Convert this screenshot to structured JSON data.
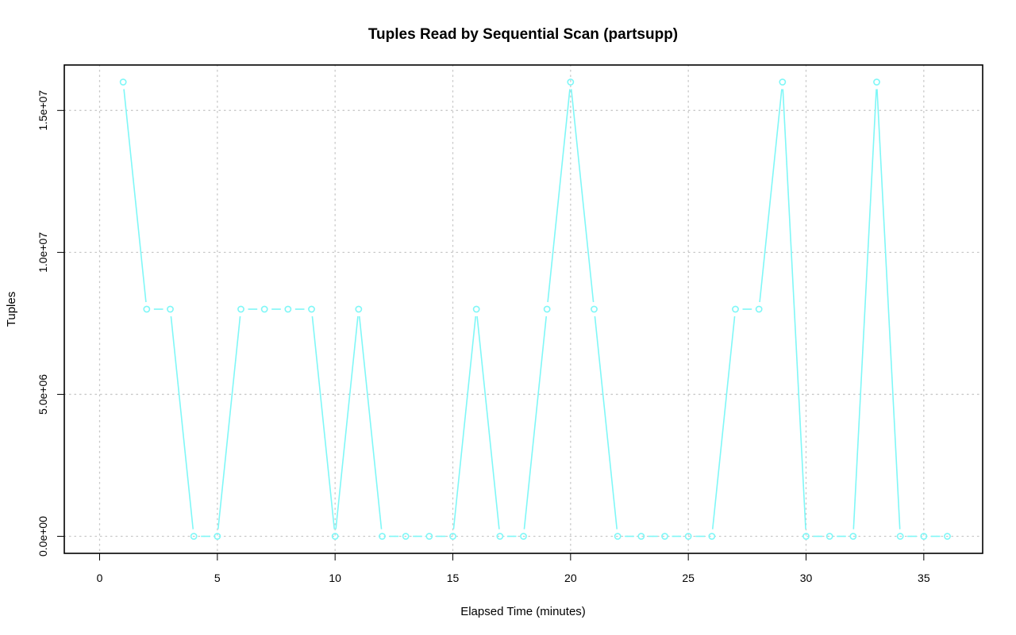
{
  "chart_data": {
    "type": "line",
    "title": "Tuples Read by Sequential Scan (partsupp)",
    "xlabel": "Elapsed Time (minutes)",
    "ylabel": "Tuples",
    "xlim": [
      -1.5,
      37.5
    ],
    "ylim": [
      -600000,
      16600000
    ],
    "xticks": [
      0,
      5,
      10,
      15,
      20,
      25,
      30,
      35
    ],
    "xtick_labels": [
      "0",
      "5",
      "10",
      "15",
      "20",
      "25",
      "30",
      "35"
    ],
    "yticks": [
      0,
      5000000,
      10000000,
      15000000
    ],
    "ytick_labels": [
      "0.0e+00",
      "5.0e+06",
      "1.0e+07",
      "1.5e+07"
    ],
    "grid": true,
    "series": [
      {
        "color": "#7ff7f7",
        "marker": "open-circle",
        "x": [
          1,
          2,
          3,
          4,
          5,
          6,
          7,
          8,
          9,
          10,
          11,
          12,
          13,
          14,
          15,
          16,
          17,
          18,
          19,
          20,
          21,
          22,
          23,
          24,
          25,
          26,
          27,
          28,
          29,
          30,
          31,
          32,
          33,
          34,
          35,
          36
        ],
        "values": [
          16000000,
          8000000,
          8000000,
          0,
          0,
          8000000,
          8000000,
          8000000,
          8000000,
          0,
          8000000,
          0,
          0,
          0,
          0,
          8000000,
          0,
          0,
          8000000,
          16000000,
          8000000,
          0,
          0,
          0,
          0,
          0,
          8000000,
          8000000,
          16000000,
          0,
          0,
          0,
          16000000,
          0,
          0,
          0
        ]
      }
    ]
  }
}
